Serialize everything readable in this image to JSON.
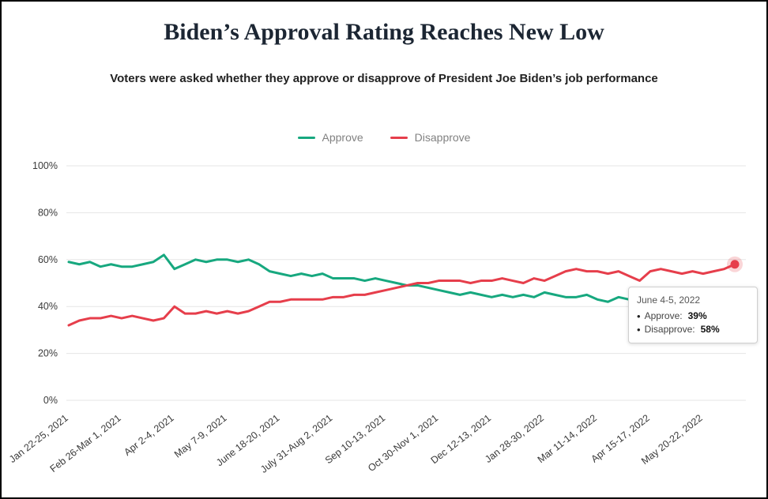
{
  "page": {
    "title": "Biden’s Approval Rating Reaches New Low",
    "subtitle": "Voters were asked whether they approve or disapprove of President Joe Biden’s job performance"
  },
  "legend": {
    "items": [
      {
        "label": "Approve",
        "color": "#17a87f"
      },
      {
        "label": "Disapprove",
        "color": "#e63e4b"
      }
    ]
  },
  "tooltip": {
    "date": "June 4-5, 2022",
    "rows": [
      {
        "bullet": "•",
        "label": "Approve:",
        "value": "39%"
      },
      {
        "bullet": "•",
        "label": "Disapprove:",
        "value": "58%"
      }
    ]
  },
  "chart_data": {
    "type": "line",
    "title": "Biden’s Approval Rating Reaches New Low",
    "xlabel": "",
    "ylabel": "",
    "ylim": [
      0,
      100
    ],
    "y_ticks": [
      0,
      20,
      40,
      60,
      80,
      100
    ],
    "grid": "horizontal",
    "legend_position": "top",
    "x_tick_labels": [
      "Jan 22-25, 2021",
      "Feb 26-Mar 1, 2021",
      "Apr 2-4, 2021",
      "May 7-9, 2021",
      "June 18-20, 2021",
      "July 31-Aug 2, 2021",
      "Sep 10-13, 2021",
      "Oct 30-Nov 1, 2021",
      "Dec 12-13, 2021",
      "Jan 28-30, 2022",
      "Mar 11-14, 2022",
      "Apr 15-17, 2022",
      "May 20-22, 2022"
    ],
    "x_tick_indices": [
      0,
      5,
      10,
      15,
      20,
      25,
      30,
      35,
      40,
      45,
      50,
      55,
      60
    ],
    "last_point_label": "June 4-5, 2022",
    "series": [
      {
        "name": "Approve",
        "color": "#17a87f",
        "values": [
          59,
          58,
          59,
          57,
          58,
          57,
          57,
          58,
          59,
          62,
          56,
          58,
          60,
          59,
          60,
          60,
          59,
          60,
          58,
          55,
          54,
          53,
          54,
          53,
          54,
          52,
          52,
          52,
          51,
          52,
          51,
          50,
          49,
          49,
          48,
          47,
          46,
          45,
          46,
          45,
          44,
          45,
          44,
          45,
          44,
          46,
          45,
          44,
          44,
          45,
          43,
          42,
          44,
          43,
          42,
          44,
          45,
          43,
          41,
          42,
          44,
          43,
          44,
          39
        ]
      },
      {
        "name": "Disapprove",
        "color": "#e63e4b",
        "values": [
          32,
          34,
          35,
          35,
          36,
          35,
          36,
          35,
          34,
          35,
          40,
          37,
          37,
          38,
          37,
          38,
          37,
          38,
          40,
          42,
          42,
          43,
          43,
          43,
          43,
          44,
          44,
          45,
          45,
          46,
          47,
          48,
          49,
          50,
          50,
          51,
          51,
          51,
          50,
          51,
          51,
          52,
          51,
          50,
          52,
          51,
          53,
          55,
          56,
          55,
          55,
          54,
          55,
          53,
          51,
          55,
          56,
          55,
          54,
          55,
          54,
          55,
          56,
          58
        ]
      }
    ]
  }
}
